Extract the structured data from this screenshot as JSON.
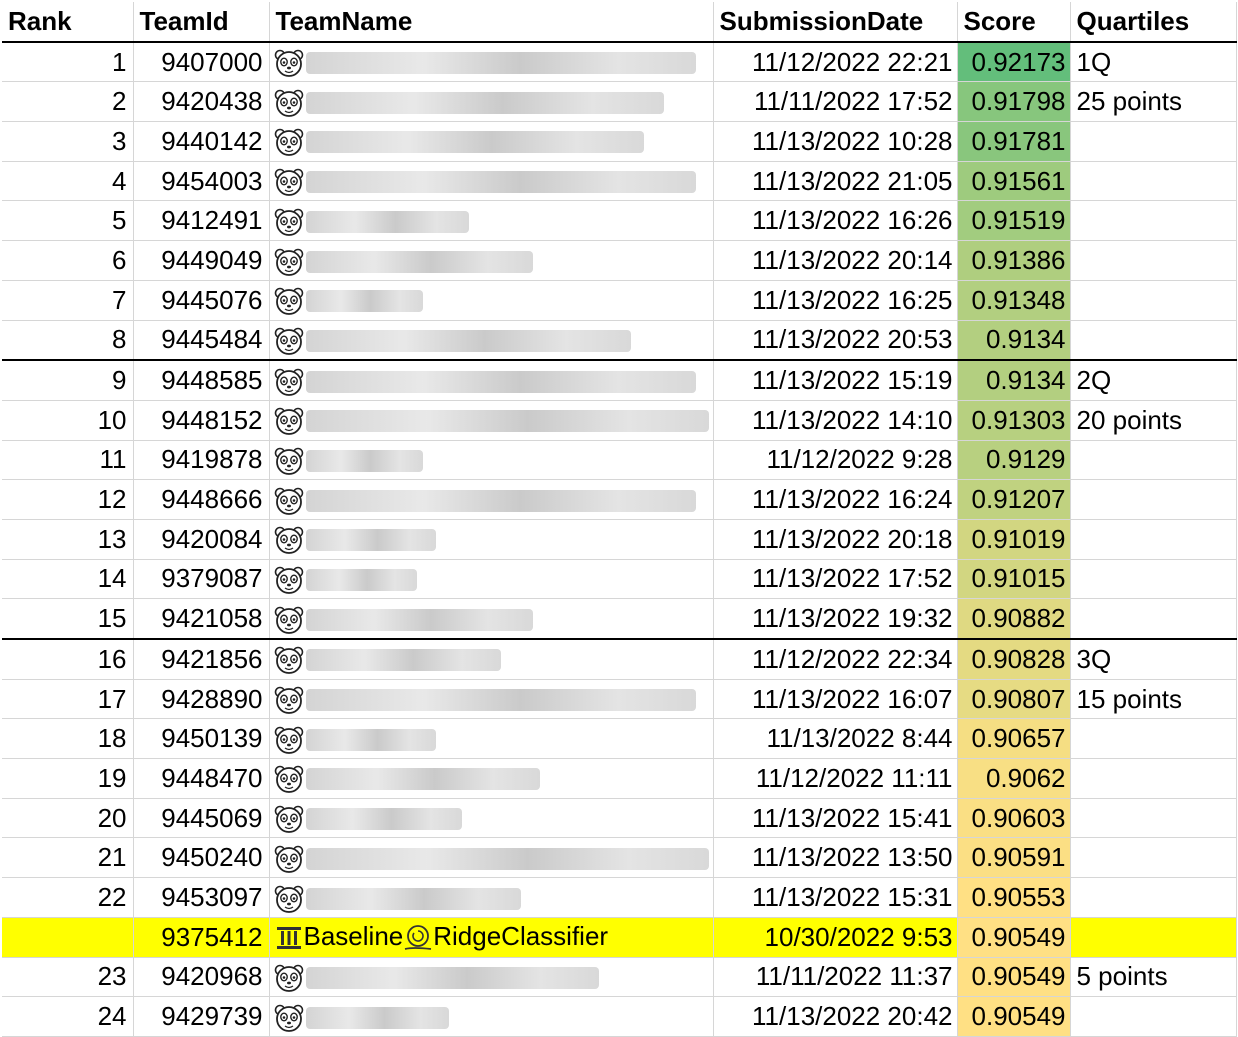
{
  "headers": {
    "rank": "Rank",
    "teamid": "TeamId",
    "teamname": "TeamName",
    "date": "SubmissionDate",
    "score": "Score",
    "quartiles": "Quartiles"
  },
  "rows": [
    {
      "rank": "1",
      "teamid": "9407000",
      "name": "",
      "date": "11/12/2022 22:21",
      "score": "0.92173",
      "quart": "1Q",
      "blur": 0.6
    },
    {
      "rank": "2",
      "teamid": "9420438",
      "name": "",
      "date": "11/11/2022 17:52",
      "score": "0.91798",
      "quart": "25 points",
      "blur": 0.55
    },
    {
      "rank": "3",
      "teamid": "9440142",
      "name": "",
      "date": "11/13/2022 10:28",
      "score": "0.91781",
      "quart": "",
      "blur": 0.52
    },
    {
      "rank": "4",
      "teamid": "9454003",
      "name": "",
      "date": "11/13/2022 21:05",
      "score": "0.91561",
      "quart": "",
      "blur": 0.6
    },
    {
      "rank": "5",
      "teamid": "9412491",
      "name": "",
      "date": "11/13/2022 16:26",
      "score": "0.91519",
      "quart": "",
      "blur": 0.25
    },
    {
      "rank": "6",
      "teamid": "9449049",
      "name": "",
      "date": "11/13/2022 20:14",
      "score": "0.91386",
      "quart": "",
      "blur": 0.35
    },
    {
      "rank": "7",
      "teamid": "9445076",
      "name": "",
      "date": "11/13/2022 16:25",
      "score": "0.91348",
      "quart": "",
      "blur": 0.18
    },
    {
      "rank": "8",
      "teamid": "9445484",
      "name": "",
      "date": "11/13/2022 20:53",
      "score": "0.9134",
      "quart": "",
      "blur": 0.5,
      "sep": true
    },
    {
      "rank": "9",
      "teamid": "9448585",
      "name": "",
      "date": "11/13/2022 15:19",
      "score": "0.9134",
      "quart": "2Q",
      "blur": 0.6
    },
    {
      "rank": "10",
      "teamid": "9448152",
      "name": "",
      "date": "11/13/2022 14:10",
      "score": "0.91303",
      "quart": "20 points",
      "blur": 0.62
    },
    {
      "rank": "11",
      "teamid": "9419878",
      "name": "",
      "date": "11/12/2022 9:28",
      "score": "0.9129",
      "quart": "",
      "blur": 0.18
    },
    {
      "rank": "12",
      "teamid": "9448666",
      "name": "",
      "date": "11/13/2022 16:24",
      "score": "0.91207",
      "quart": "",
      "blur": 0.6
    },
    {
      "rank": "13",
      "teamid": "9420084",
      "name": "",
      "date": "11/13/2022 20:18",
      "score": "0.91019",
      "quart": "",
      "blur": 0.2
    },
    {
      "rank": "14",
      "teamid": "9379087",
      "name": "",
      "date": "11/13/2022 17:52",
      "score": "0.91015",
      "quart": "",
      "blur": 0.17
    },
    {
      "rank": "15",
      "teamid": "9421058",
      "name": "",
      "date": "11/13/2022 19:32",
      "score": "0.90882",
      "quart": "",
      "blur": 0.35,
      "sep": true
    },
    {
      "rank": "16",
      "teamid": "9421856",
      "name": "",
      "date": "11/12/2022 22:34",
      "score": "0.90828",
      "quart": "3Q",
      "blur": 0.3
    },
    {
      "rank": "17",
      "teamid": "9428890",
      "name": "",
      "date": "11/13/2022 16:07",
      "score": "0.90807",
      "quart": "15 points",
      "blur": 0.6
    },
    {
      "rank": "18",
      "teamid": "9450139",
      "name": "",
      "date": "11/13/2022 8:44",
      "score": "0.90657",
      "quart": "",
      "blur": 0.2
    },
    {
      "rank": "19",
      "teamid": "9448470",
      "name": "",
      "date": "11/12/2022 11:11",
      "score": "0.9062",
      "quart": "",
      "blur": 0.36
    },
    {
      "rank": "20",
      "teamid": "9445069",
      "name": "",
      "date": "11/13/2022 15:41",
      "score": "0.90603",
      "quart": "",
      "blur": 0.24
    },
    {
      "rank": "21",
      "teamid": "9450240",
      "name": "",
      "date": "11/13/2022 13:50",
      "score": "0.90591",
      "quart": "",
      "blur": 0.62
    },
    {
      "rank": "22",
      "teamid": "9453097",
      "name": "",
      "date": "11/13/2022 15:31",
      "score": "0.90553",
      "quart": "",
      "blur": 0.33
    },
    {
      "rank": "",
      "teamid": "9375412",
      "name": "Baseline",
      "name2": "RidgeClassifier",
      "date": "10/30/2022 9:53",
      "score": "0.90549",
      "quart": "",
      "baseline": true
    },
    {
      "rank": "23",
      "teamid": "9420968",
      "name": "",
      "date": "11/11/2022 11:37",
      "score": "0.90549",
      "quart": "5 points",
      "blur": 0.45
    },
    {
      "rank": "24",
      "teamid": "9429739",
      "name": "",
      "date": "11/13/2022 20:42",
      "score": "0.90549",
      "quart": "",
      "blur": 0.22
    }
  ],
  "colors": {
    "score_high": "#63be7b",
    "score_mid": "#bcd57e",
    "score_low": "#ffe084",
    "baseline_row": "#ffff00"
  },
  "icons": {
    "team": "panda-face-icon",
    "baseline": "column-pillar-icon",
    "baseline2": "snail-icon"
  }
}
